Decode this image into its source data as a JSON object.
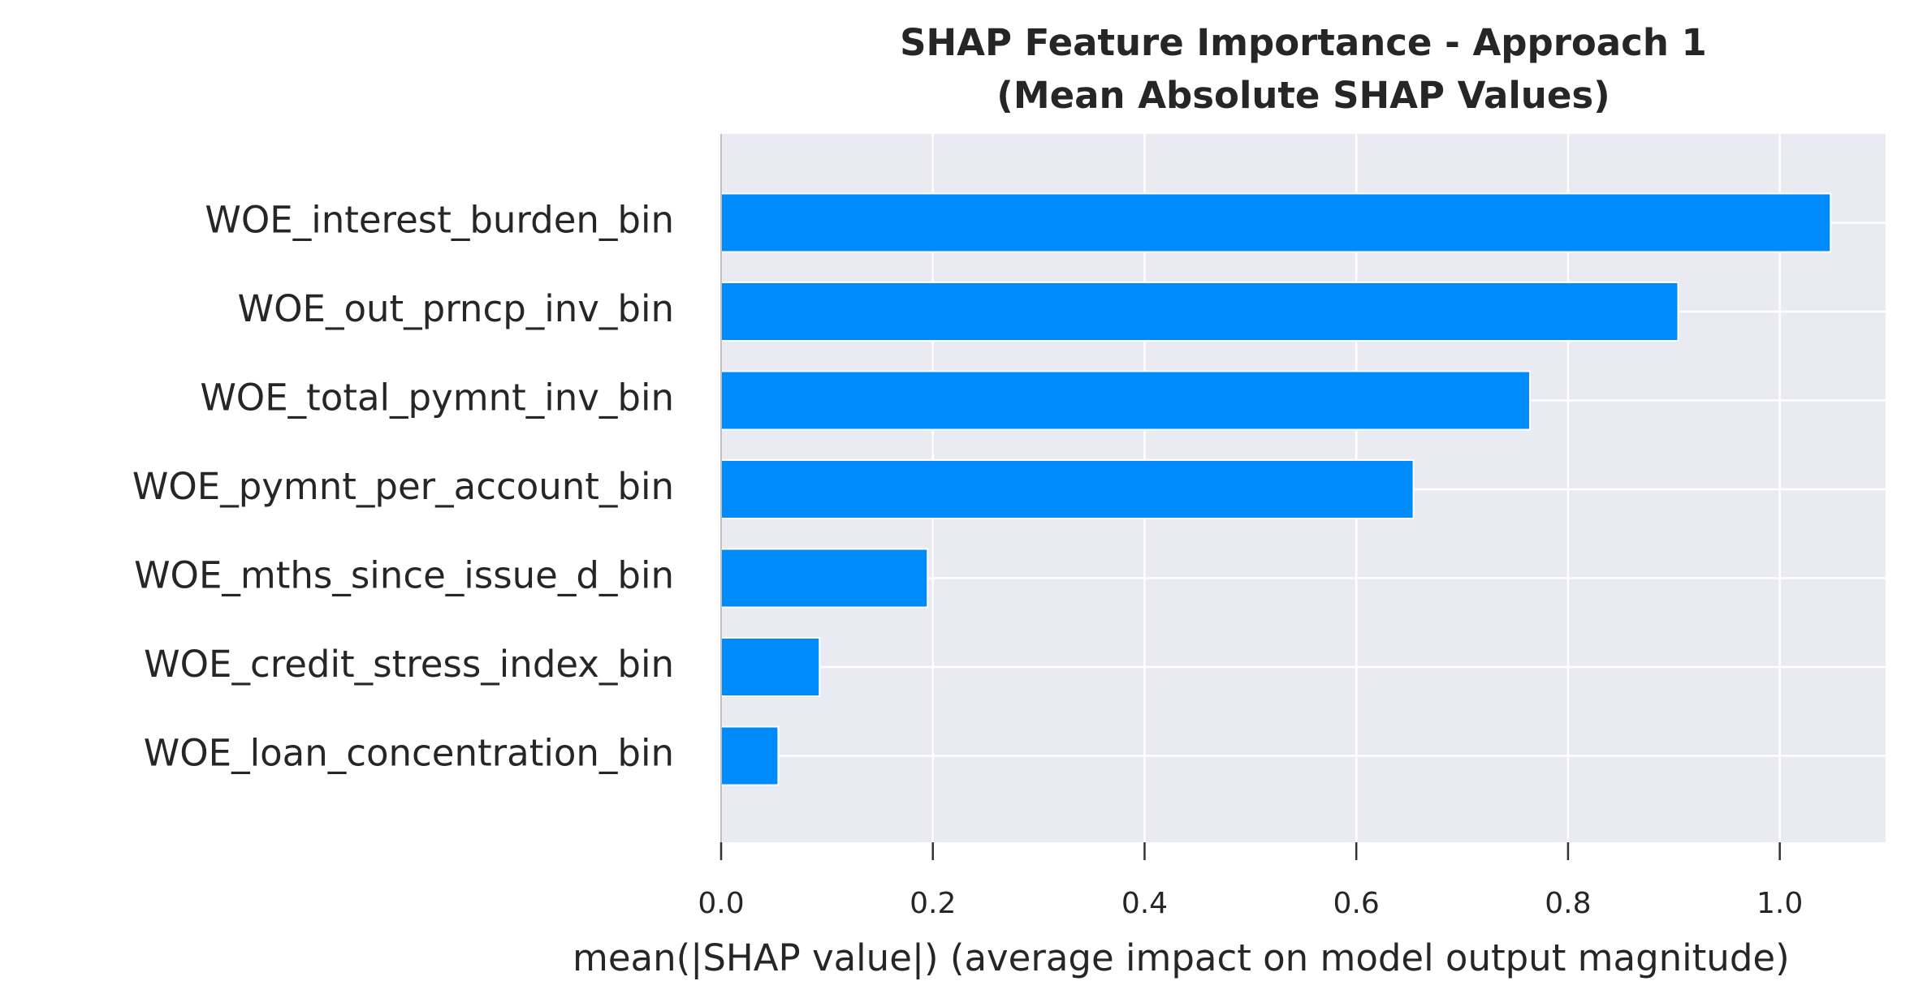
{
  "chart_data": {
    "type": "barh",
    "title": [
      "SHAP Feature Importance - Approach 1",
      "(Mean Absolute SHAP Values)"
    ],
    "xlabel": "mean(|SHAP value|) (average impact on model output magnitude)",
    "categories": [
      "WOE_interest_burden_bin",
      "WOE_out_prncp_inv_bin",
      "WOE_total_pymnt_inv_bin",
      "WOE_pymnt_per_account_bin",
      "WOE_mths_since_issue_d_bin",
      "WOE_credit_stress_index_bin",
      "WOE_loan_concentration_bin"
    ],
    "values": [
      1.048,
      0.904,
      0.764,
      0.654,
      0.195,
      0.093,
      0.054
    ],
    "color": "#008bfb",
    "xlim": [
      0,
      1.1
    ],
    "xticks": [
      {
        "value": 0,
        "label": "0.0"
      },
      0.2,
      0.4,
      0.6,
      0.8,
      {
        "value": 1,
        "label": "1.0"
      }
    ],
    "grid": true
  }
}
